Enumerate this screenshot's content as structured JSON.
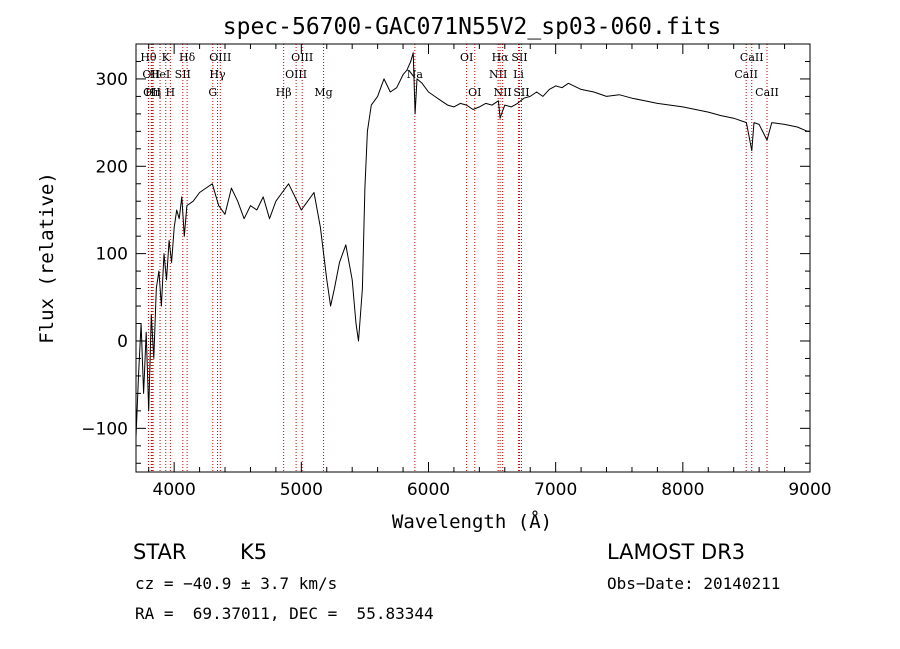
{
  "chart_data": {
    "type": "line",
    "title": "spec-56700-GAC071N55V2_sp03-060.fits",
    "xlabel": "Wavelength (Å)",
    "ylabel": "Flux (relative)",
    "xlim": [
      3700,
      9000
    ],
    "ylim": [
      -150,
      340
    ],
    "x_ticks": [
      4000,
      5000,
      6000,
      7000,
      8000,
      9000
    ],
    "y_ticks": [
      -100,
      0,
      100,
      200,
      300
    ],
    "grid": false,
    "line_color": "#000000",
    "marker_color": "#cc0000",
    "series": [
      {
        "x": [
          3700,
          3720,
          3740,
          3760,
          3780,
          3800,
          3820,
          3840,
          3860,
          3880,
          3900,
          3920,
          3940,
          3960,
          3980,
          4000,
          4020,
          4040,
          4060,
          4080,
          4100,
          4150,
          4200,
          4250,
          4300,
          4350,
          4400,
          4450,
          4500,
          4550,
          4600,
          4650,
          4700,
          4750,
          4800,
          4850,
          4900,
          4950,
          5000,
          5050,
          5100,
          5150,
          5200,
          5230,
          5260,
          5300,
          5350,
          5400,
          5430,
          5450,
          5480,
          5500,
          5520,
          5550,
          5600,
          5650,
          5700,
          5750,
          5800,
          5830,
          5860,
          5880,
          5895,
          5910,
          5950,
          6000,
          6050,
          6100,
          6150,
          6200,
          6250,
          6300,
          6350,
          6400,
          6450,
          6500,
          6550,
          6563,
          6580,
          6600,
          6650,
          6700,
          6750,
          6800,
          6850,
          6900,
          6950,
          7000,
          7050,
          7100,
          7200,
          7300,
          7400,
          7500,
          7600,
          7700,
          7800,
          7900,
          8000,
          8100,
          8200,
          8300,
          8400,
          8500,
          8542,
          8560,
          8600,
          8662,
          8700,
          8800,
          8900,
          8980,
          9000
        ],
        "y": [
          -110,
          -40,
          20,
          -60,
          10,
          -80,
          30,
          -20,
          60,
          80,
          40,
          100,
          70,
          115,
          90,
          130,
          150,
          140,
          165,
          120,
          155,
          160,
          170,
          175,
          180,
          155,
          145,
          175,
          160,
          140,
          155,
          150,
          165,
          140,
          160,
          170,
          180,
          165,
          150,
          160,
          170,
          130,
          70,
          40,
          60,
          90,
          110,
          70,
          20,
          0,
          60,
          175,
          240,
          270,
          280,
          300,
          285,
          290,
          305,
          310,
          320,
          330,
          260,
          300,
          295,
          285,
          280,
          275,
          270,
          268,
          272,
          270,
          265,
          268,
          272,
          270,
          275,
          255,
          262,
          270,
          268,
          272,
          278,
          280,
          285,
          280,
          288,
          292,
          290,
          295,
          288,
          285,
          280,
          282,
          278,
          275,
          272,
          270,
          268,
          265,
          262,
          258,
          255,
          250,
          218,
          250,
          248,
          230,
          250,
          248,
          245,
          240,
          240
        ]
      }
    ],
    "line_markers": [
      {
        "x": 3798,
        "label": "Hθ",
        "row": 0
      },
      {
        "x": 3820,
        "label": "OII",
        "row": 1
      },
      {
        "x": 3826,
        "label": "OII",
        "row": 2
      },
      {
        "x": 3835,
        "label": "Hη",
        "row": 2
      },
      {
        "x": 3889,
        "label": "HeI",
        "row": 1
      },
      {
        "x": 3934,
        "label": "K",
        "row": 0
      },
      {
        "x": 3970,
        "label": "H",
        "row": 2
      },
      {
        "x": 4068,
        "label": "SII",
        "row": 1
      },
      {
        "x": 4102,
        "label": "Hδ",
        "row": 0
      },
      {
        "x": 4304,
        "label": "G",
        "row": 2
      },
      {
        "x": 4341,
        "label": "Hγ",
        "row": 1
      },
      {
        "x": 4363,
        "label": "OIII",
        "row": 0
      },
      {
        "x": 4861,
        "label": "Hβ",
        "row": 2
      },
      {
        "x": 4959,
        "label": "OIII",
        "row": 1
      },
      {
        "x": 5007,
        "label": "OIII",
        "row": 0
      },
      {
        "x": 5175,
        "label": "Mg",
        "row": 2
      },
      {
        "x": 5893,
        "label": "Na",
        "row": 1
      },
      {
        "x": 6300,
        "label": "OI",
        "row": 0
      },
      {
        "x": 6364,
        "label": "OI",
        "row": 2
      },
      {
        "x": 6548,
        "label": "NII",
        "row": 1
      },
      {
        "x": 6563,
        "label": "Hα",
        "row": 0
      },
      {
        "x": 6583,
        "label": "NII",
        "row": 2
      },
      {
        "x": 6708,
        "label": "Li",
        "row": 1
      },
      {
        "x": 6716,
        "label": "SII",
        "row": 0
      },
      {
        "x": 6731,
        "label": "SII",
        "row": 2
      },
      {
        "x": 8498,
        "label": "CaII",
        "row": 1
      },
      {
        "x": 8542,
        "label": "CaII",
        "row": 0
      },
      {
        "x": 8662,
        "label": "CaII",
        "row": 2
      }
    ]
  },
  "info": {
    "object_class": "STAR",
    "subclass": "K5",
    "survey": "LAMOST DR3",
    "cz": "cz = −40.9 ± 3.7 km/s",
    "obs_date": "Obs−Date: 20140211",
    "coords": "RA =  69.37011, DEC =  55.83344"
  }
}
